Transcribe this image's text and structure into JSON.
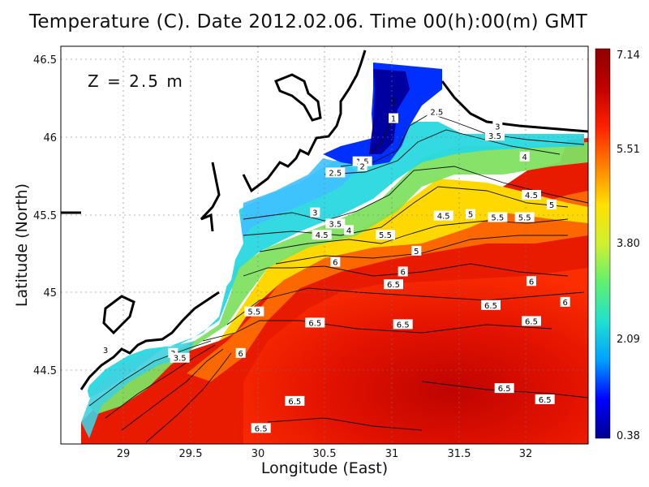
{
  "title": "Temperature (C). Date 2012.02.06. Time 00(h):00(m) GMT",
  "depth_label": "Z = 2.5 m",
  "axes": {
    "xlabel": "Longitude (East)",
    "ylabel": "Latitude (North)",
    "xticks": [
      "29",
      "29.5",
      "30",
      "30.5",
      "31",
      "31.5",
      "32"
    ],
    "yticks": [
      "44.5",
      "45",
      "45.5",
      "46",
      "46.5"
    ],
    "xlim": [
      28.57,
      32.47
    ],
    "ylim": [
      44.03,
      46.52
    ],
    "grid": true
  },
  "colorbar": {
    "ticks": [
      "7.14",
      "5.51",
      "3.80",
      "2.09",
      "0.38"
    ],
    "min": 0.38,
    "max": 7.14,
    "colors": [
      "#00008f",
      "#0000ff",
      "#00a0ff",
      "#20e0d0",
      "#60f070",
      "#d0f030",
      "#ffe000",
      "#ff8000",
      "#ff2000",
      "#c00000",
      "#8f0000"
    ]
  },
  "contour_labels": [
    {
      "text": "1",
      "lon": 31.03,
      "lat": 46.07
    },
    {
      "text": "1.5",
      "lon": 30.8,
      "lat": 45.8
    },
    {
      "text": "2",
      "lon": 30.8,
      "lat": 45.77
    },
    {
      "text": "2.5",
      "lon": 30.6,
      "lat": 45.73
    },
    {
      "text": "2.5",
      "lon": 31.35,
      "lat": 46.11
    },
    {
      "text": "3",
      "lon": 31.8,
      "lat": 46.02
    },
    {
      "text": "3.5",
      "lon": 31.78,
      "lat": 45.96
    },
    {
      "text": "3",
      "lon": 30.45,
      "lat": 45.48
    },
    {
      "text": "3.5",
      "lon": 30.6,
      "lat": 45.41
    },
    {
      "text": "4",
      "lon": 30.7,
      "lat": 45.37
    },
    {
      "text": "4.5",
      "lon": 30.5,
      "lat": 45.34
    },
    {
      "text": "5.5",
      "lon": 30.97,
      "lat": 45.34
    },
    {
      "text": "5",
      "lon": 31.2,
      "lat": 45.24
    },
    {
      "text": "4",
      "lon": 32.0,
      "lat": 45.83
    },
    {
      "text": "4.5",
      "lon": 31.4,
      "lat": 45.46
    },
    {
      "text": "5",
      "lon": 31.6,
      "lat": 45.47
    },
    {
      "text": "5.5",
      "lon": 31.8,
      "lat": 45.45
    },
    {
      "text": "5.5",
      "lon": 32.0,
      "lat": 45.45
    },
    {
      "text": "4.5",
      "lon": 32.05,
      "lat": 45.59
    },
    {
      "text": "5",
      "lon": 32.2,
      "lat": 45.53
    },
    {
      "text": "6",
      "lon": 30.6,
      "lat": 45.17
    },
    {
      "text": "6",
      "lon": 31.1,
      "lat": 45.11
    },
    {
      "text": "6.5",
      "lon": 31.03,
      "lat": 45.03
    },
    {
      "text": "6",
      "lon": 32.05,
      "lat": 45.05
    },
    {
      "text": "6.5",
      "lon": 31.75,
      "lat": 44.9
    },
    {
      "text": "6",
      "lon": 32.3,
      "lat": 44.92
    },
    {
      "text": "6.5",
      "lon": 32.05,
      "lat": 44.8
    },
    {
      "text": "5.5",
      "lon": 30.0,
      "lat": 44.86
    },
    {
      "text": "6.5",
      "lon": 30.45,
      "lat": 44.79
    },
    {
      "text": "6.5",
      "lon": 31.1,
      "lat": 44.78
    },
    {
      "text": "6",
      "lon": 29.9,
      "lat": 44.6
    },
    {
      "text": "3",
      "lon": 28.9,
      "lat": 44.62
    },
    {
      "text": "3",
      "lon": 29.4,
      "lat": 44.6
    },
    {
      "text": "3.5",
      "lon": 29.45,
      "lat": 44.57
    },
    {
      "text": "6.5",
      "lon": 31.85,
      "lat": 44.38
    },
    {
      "text": "6.5",
      "lon": 32.15,
      "lat": 44.31
    },
    {
      "text": "6.5",
      "lon": 30.3,
      "lat": 44.3
    },
    {
      "text": "6.5",
      "lon": 30.05,
      "lat": 44.13
    }
  ]
}
